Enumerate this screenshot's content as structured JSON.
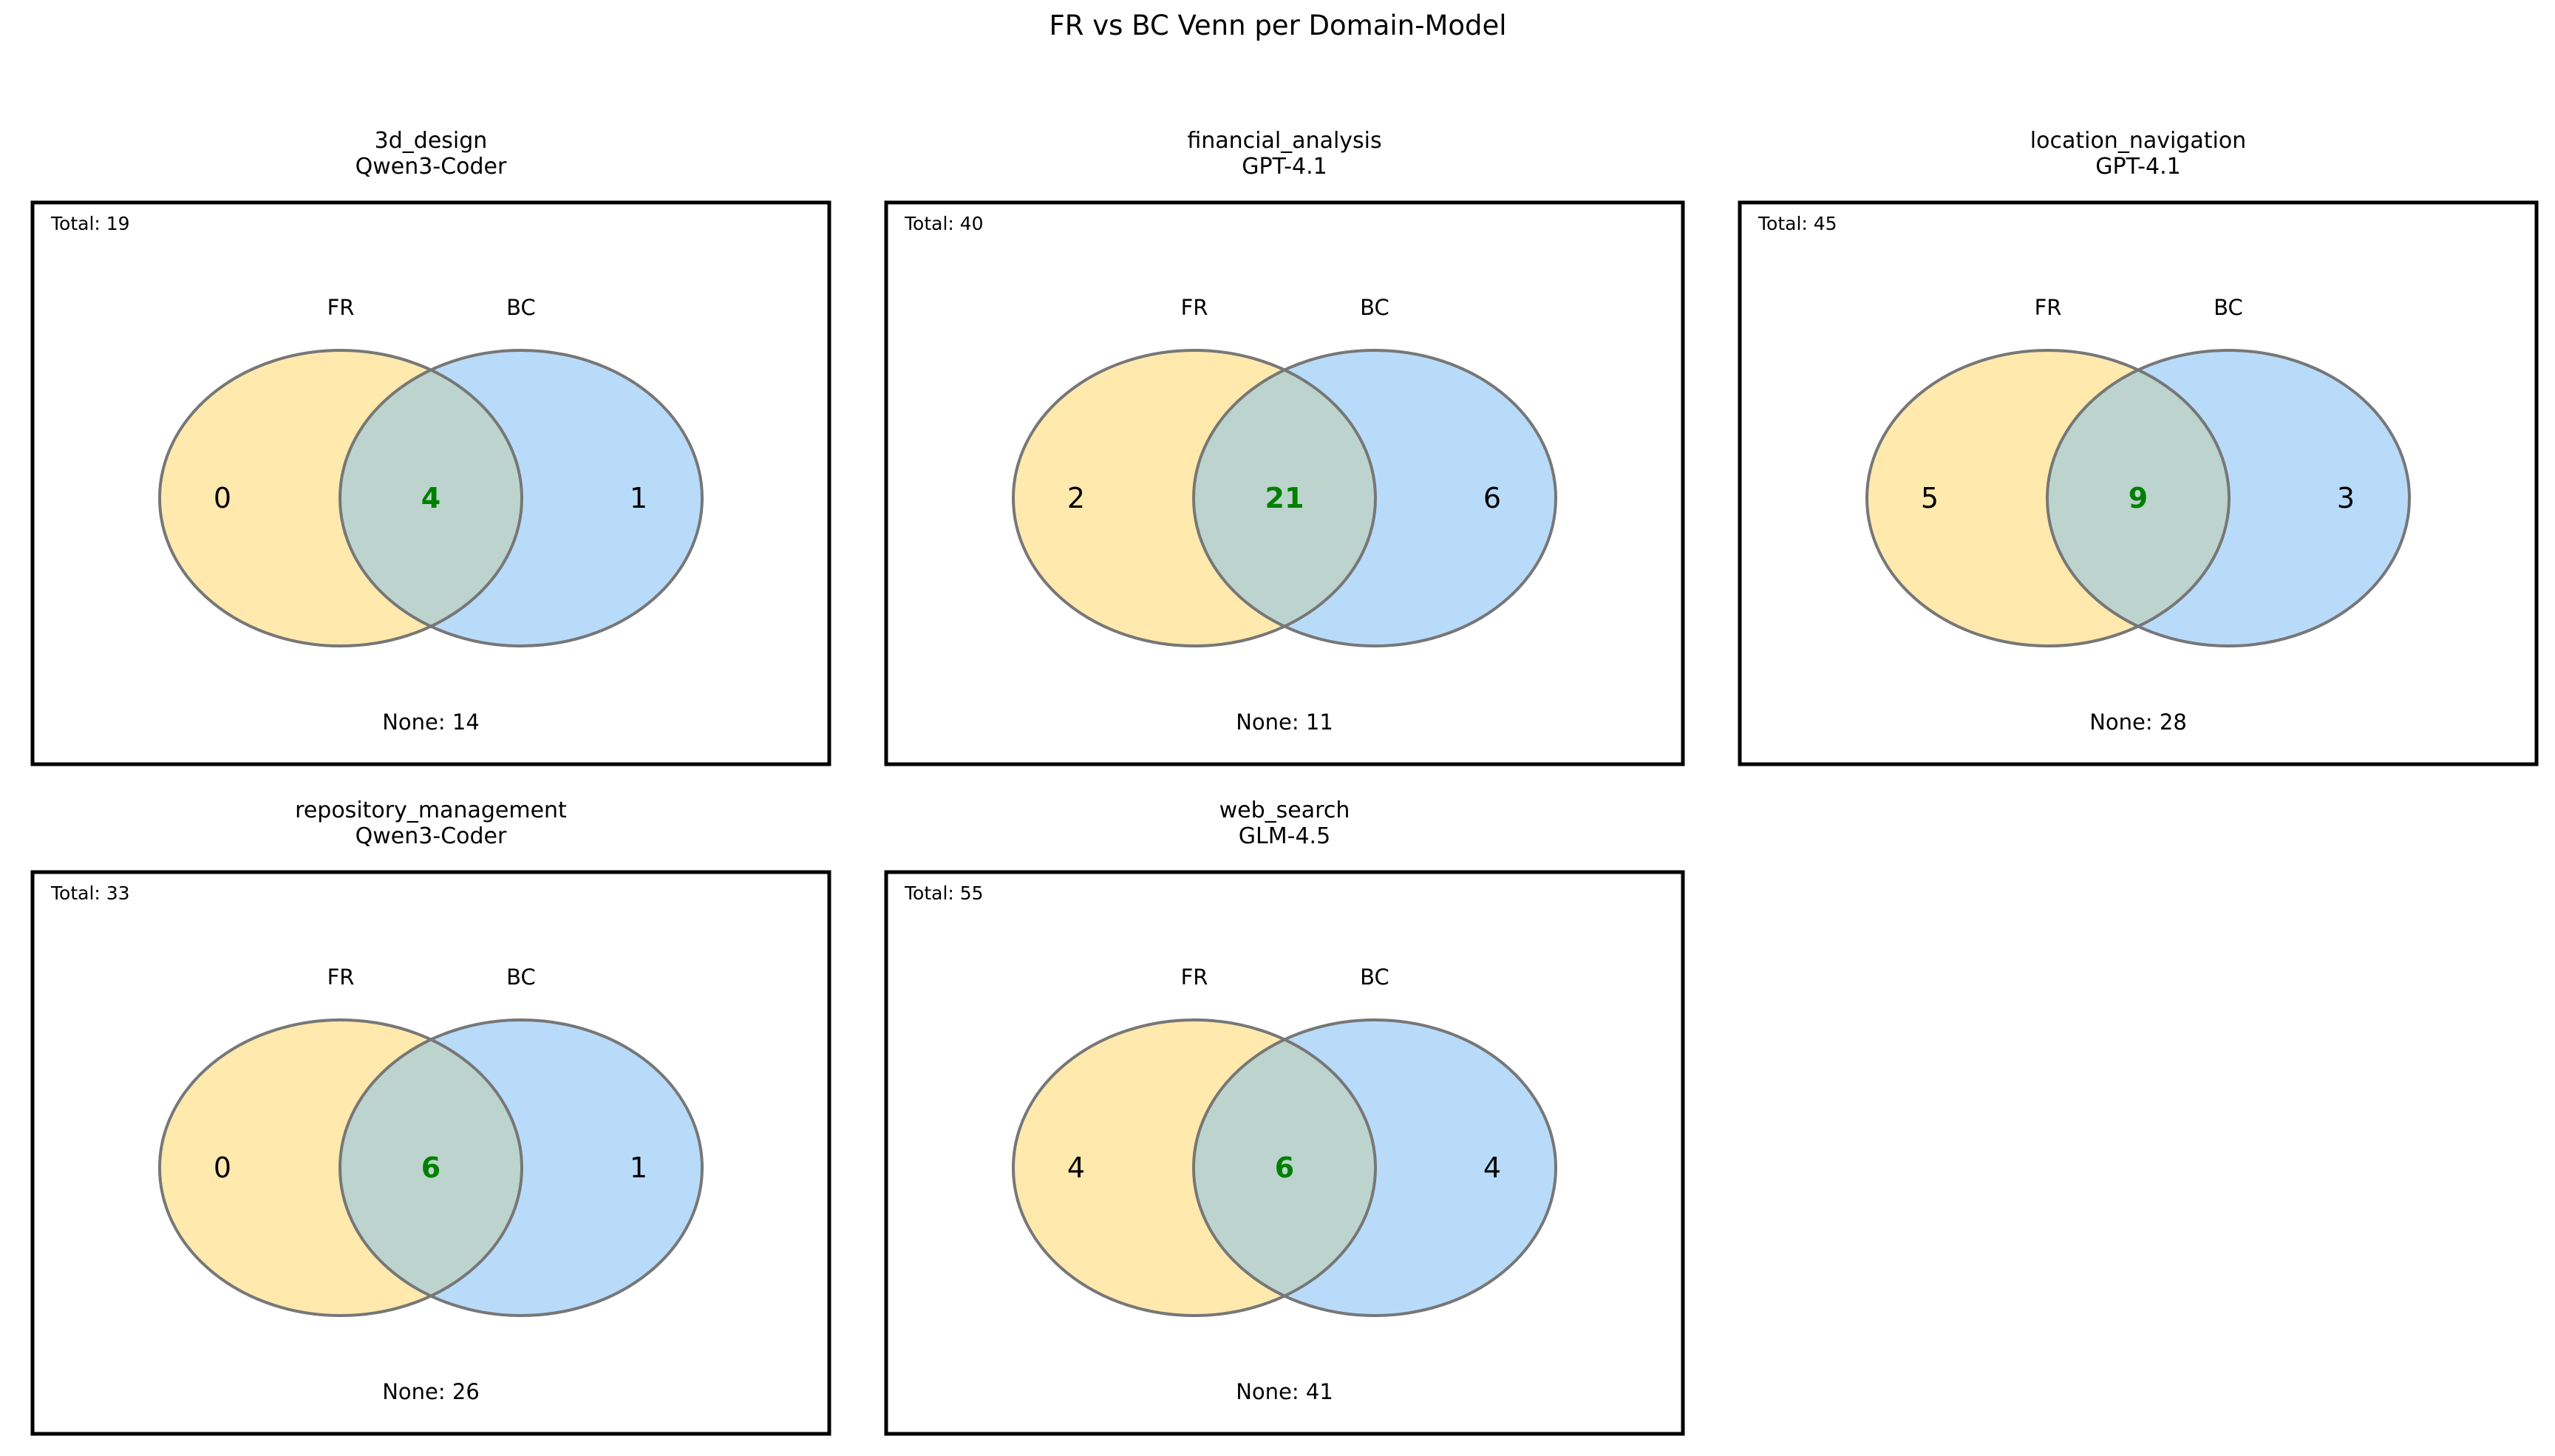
{
  "figure": {
    "title": "FR vs BC Venn per Domain-Model"
  },
  "colors": {
    "fr_fill": "#ffe9ad",
    "bc_fill": "#b9dbfa",
    "overlap_fill": "#bcd4cd",
    "circle_edge": "#777777",
    "frame": "#000000",
    "both_text": "#008000",
    "text": "#000000"
  },
  "chart_data": [
    {
      "type": "venn",
      "title": "3d_design",
      "subtitle": "Qwen3-Coder",
      "sets": [
        "FR",
        "BC"
      ],
      "fr_only": 0,
      "both": 4,
      "bc_only": 1,
      "total_label": "Total: 19",
      "none_label": "None: 14"
    },
    {
      "type": "venn",
      "title": "financial_analysis",
      "subtitle": "GPT-4.1",
      "sets": [
        "FR",
        "BC"
      ],
      "fr_only": 2,
      "both": 21,
      "bc_only": 6,
      "total_label": "Total: 40",
      "none_label": "None: 11"
    },
    {
      "type": "venn",
      "title": "location_navigation",
      "subtitle": "GPT-4.1",
      "sets": [
        "FR",
        "BC"
      ],
      "fr_only": 5,
      "both": 9,
      "bc_only": 3,
      "total_label": "Total: 45",
      "none_label": "None: 28"
    },
    {
      "type": "venn",
      "title": "repository_management",
      "subtitle": "Qwen3-Coder",
      "sets": [
        "FR",
        "BC"
      ],
      "fr_only": 0,
      "both": 6,
      "bc_only": 1,
      "total_label": "Total: 33",
      "none_label": "None: 26"
    },
    {
      "type": "venn",
      "title": "web_search",
      "subtitle": "GLM-4.5",
      "sets": [
        "FR",
        "BC"
      ],
      "fr_only": 4,
      "both": 6,
      "bc_only": 4,
      "total_label": "Total: 55",
      "none_label": "None: 41"
    }
  ]
}
